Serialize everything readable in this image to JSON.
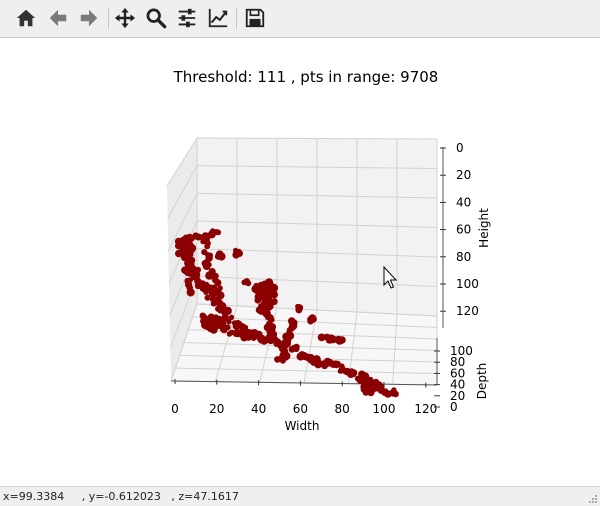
{
  "toolbar": {
    "buttons": [
      {
        "name": "home",
        "icon": "home-icon"
      },
      {
        "name": "back",
        "icon": "arrow-left-icon"
      },
      {
        "name": "forward",
        "icon": "arrow-right-icon"
      },
      {
        "name": "pan",
        "icon": "move-icon"
      },
      {
        "name": "zoom",
        "icon": "magnifier-icon"
      },
      {
        "name": "configure-subplots",
        "icon": "sliders-icon"
      },
      {
        "name": "edit-axis",
        "icon": "line-chart-icon"
      },
      {
        "name": "save",
        "icon": "floppy-disk-icon"
      }
    ]
  },
  "figure": {
    "title": "Threshold: 111 , pts in range: 9708"
  },
  "chart_data": {
    "type": "scatter",
    "projection": "3d",
    "title": "Threshold: 111 , pts in range: 9708",
    "xlabel": "Width",
    "ylabel": "Height",
    "zlabel": "Depth",
    "x_ticks": [
      "0",
      "20",
      "40",
      "60",
      "80",
      "100",
      "120"
    ],
    "height_ticks": [
      "0",
      "20",
      "40",
      "60",
      "80",
      "100",
      "120"
    ],
    "depth_ticks": [
      "100",
      "80",
      "60",
      "40",
      "20",
      "0"
    ],
    "grid": true,
    "marker_color": "#8b0000",
    "point_count": 9708
  },
  "status": {
    "coords": "x=99.3384     , y=-0.612023   , z=47.1617"
  },
  "colors": {
    "toolbar_bg": "#efefee",
    "pane_bg": "#f2f2f2",
    "grid": "#d0d0d0",
    "points": "#8b0000"
  }
}
